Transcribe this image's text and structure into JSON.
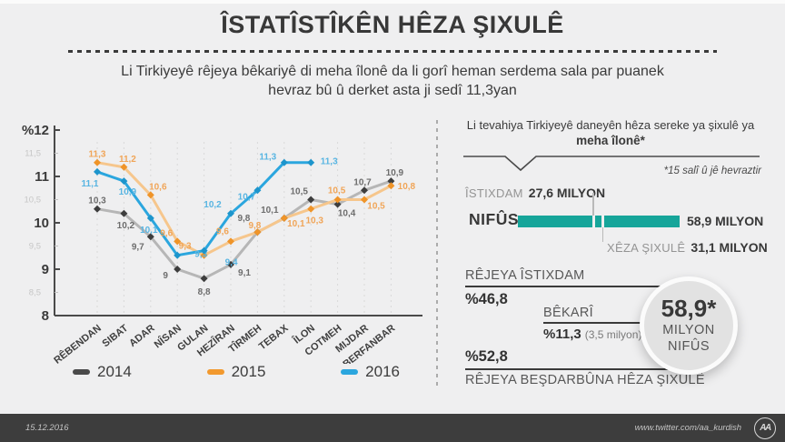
{
  "header": {
    "title": "ÎSTATÎSTÎKÊN HÊZA ŞIXULÊ",
    "subtitle_line1": "Li Tirkiyeyê rêjeya bêkariyê di meha îlonê da li gorî heman serdema sala par puanek",
    "subtitle_line2": "hevraz bû û derket asta ji sedî 11,3yan"
  },
  "chart_data": {
    "type": "line",
    "title": "",
    "xlabel": "",
    "ylabel": "%",
    "ylim": [
      8,
      12
    ],
    "grid": "vertical-dashed",
    "legend_position": "bottom",
    "categories": [
      "RÊBENDAN",
      "SIBAT",
      "ADAR",
      "NÎSAN",
      "GULAN",
      "HEZÎRAN",
      "TÎRMEH",
      "TEBAX",
      "ÎLON",
      "COTMEH",
      "MIJDAR",
      "BERFANBAR"
    ],
    "yticks_major": [
      {
        "value": 12,
        "label": "%12"
      },
      {
        "value": 11,
        "label": "11"
      },
      {
        "value": 10,
        "label": "10"
      },
      {
        "value": 9,
        "label": "9"
      },
      {
        "value": 8,
        "label": "8"
      }
    ],
    "yticks_minor": [
      {
        "value": 11.5,
        "label": "11,5"
      },
      {
        "value": 10.5,
        "label": "10,5"
      },
      {
        "value": 9.5,
        "label": "9,5"
      },
      {
        "value": 8.5,
        "label": "8,5"
      }
    ],
    "series": [
      {
        "name": "2014",
        "swatch_color": "#4a4a4a",
        "line_color": "#b6b6b6",
        "marker_color": "#3d3d3d",
        "label_color": "#6d6d6d",
        "values": [
          10.3,
          10.2,
          9.7,
          9.0,
          8.8,
          9.1,
          9.8,
          10.1,
          10.5,
          10.4,
          10.7,
          10.9
        ],
        "labels": [
          "10,3",
          "10,2",
          "9,7",
          "9",
          "8,8",
          "9,1",
          "9,8",
          "10,1",
          "10,5",
          "10,4",
          "10,7",
          "10,9"
        ]
      },
      {
        "name": "2015",
        "swatch_color": "#f2992e",
        "line_color": "#f6c68c",
        "marker_color": "#ef9429",
        "label_color": "#f0a558",
        "values": [
          11.3,
          11.2,
          10.6,
          9.6,
          9.3,
          9.6,
          9.8,
          10.1,
          10.3,
          10.5,
          10.5,
          10.8
        ],
        "labels": [
          "11,3",
          "11,2",
          "10,6",
          "9,6",
          "9,3",
          "9,6",
          "9,8",
          "10,1",
          "10,3",
          "10,5",
          "10,5",
          "10,8"
        ]
      },
      {
        "name": "2016",
        "swatch_color": "#2ba6de",
        "line_color": "#2ba6de",
        "marker_color": "#1d95cc",
        "label_color": "#58b5e2",
        "values": [
          11.1,
          10.9,
          10.1,
          9.3,
          9.4,
          10.2,
          10.7,
          11.3,
          11.3
        ],
        "labels": [
          "11,1",
          "10,9",
          "10,1",
          "9,3",
          "9,4",
          "10,2",
          "10,7",
          "11,3",
          "11,3"
        ]
      }
    ]
  },
  "panel": {
    "heading_line1": "Li tevahiya Tirkiyeyê daneyên hêza sereke ya şixulê ya",
    "heading_line2": "meha îlonê*",
    "footnote": "*15 salî û jê hevraztir",
    "istixdam_label": "ÎSTIXDAM",
    "istixdam_value": "27,6 MILYON",
    "istixdam_milyon": 27.6,
    "nifus_label": "NIFÛS",
    "nifus_value": "58,9 MILYON",
    "nifus_milyon": 58.9,
    "xeza_label": "XÊZA ŞIXULÊ",
    "xeza_value": "31,1 MILYON",
    "xeza_milyon": 31.1,
    "bar_color": "#16a59a",
    "rejeya_istixdam_label": "RÊJEYA ÎSTIXDAM",
    "rejeya_istixdam_value": "%46,8",
    "bekari_label": "BÊKARÎ",
    "bekari_value": "%11,3",
    "bekari_extra": "(3,5 milyon)",
    "besdarbun_value": "%52,8",
    "besdarbun_label": "RÊJEYA BEŞDARBÛNA HÊZA ŞIXULÊ",
    "circle": {
      "value": "58,9*",
      "line1": "MILYON",
      "line2": "NIFÛS"
    }
  },
  "footer": {
    "date": "15.12.2016",
    "handle": "www.twitter.com/aa_kurdish",
    "logo": "AA"
  }
}
